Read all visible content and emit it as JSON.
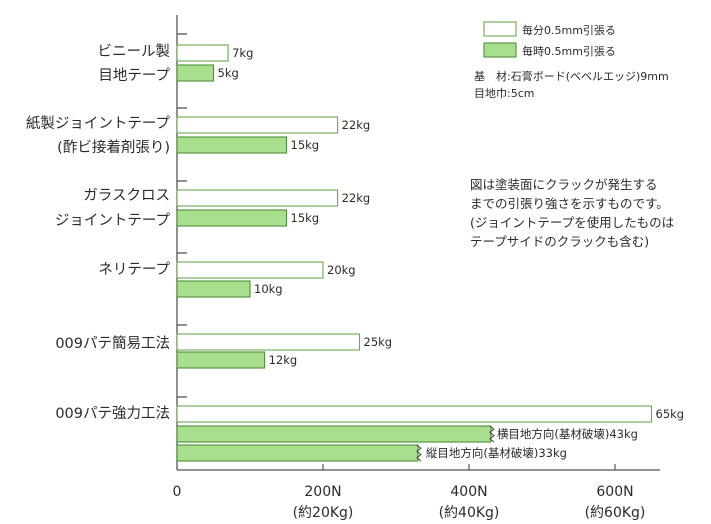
{
  "chart_data": {
    "type": "bar",
    "orientation": "horizontal",
    "categories": [
      [
        "ビニール製",
        "目地テープ"
      ],
      [
        "紙製ジョイントテープ",
        "(酢ビ接着剤張り)"
      ],
      [
        "ガラスクロス",
        "ジョイントテープ"
      ],
      [
        "ネリテープ"
      ],
      [
        "009パテ簡易工法"
      ],
      [
        "009パテ強力工法"
      ]
    ],
    "series": [
      {
        "name": "毎分0.5mm引張る",
        "color": "#ffffff",
        "stroke": "#6aa84f",
        "values": [
          7,
          22,
          22,
          20,
          25,
          65
        ],
        "labels": [
          "7kg",
          "22kg",
          "22kg",
          "20kg",
          "25kg",
          "65kg"
        ]
      },
      {
        "name": "毎時0.5mm引張る",
        "color": "#a8df8c",
        "stroke": "#4f8f3a",
        "values": [
          5,
          15,
          15,
          10,
          12,
          43
        ],
        "labels": [
          "5kg",
          "15kg",
          "15kg",
          "10kg",
          "12kg",
          "横目地方向(基材破壊)43kg"
        ]
      }
    ],
    "extra_bars": [
      {
        "category_index": 5,
        "series": "毎時0.5mm引張る",
        "value": 33,
        "label": "縦目地方向(基材破壊)33kg",
        "broken": true
      }
    ],
    "broken_bars": [
      {
        "category_index": 5,
        "series_index": 1
      }
    ],
    "xlim": [
      0,
      68
    ],
    "x_ticks": [
      {
        "value": 0,
        "label": "0",
        "sub": ""
      },
      {
        "value": 20,
        "label": "200N",
        "sub": "(約20Kg)"
      },
      {
        "value": 40,
        "label": "400N",
        "sub": "(約40Kg)"
      },
      {
        "value": 60,
        "label": "600N",
        "sub": "(約60Kg)"
      }
    ],
    "legend_position": "top-right",
    "legend_notes": [
      "基　材:石膏ボード(ベベルエッジ)9mm",
      "目地巾:5cm"
    ],
    "annotation": [
      "図は塗装面にクラックが発生する",
      "までの引張り強さを示すものです。",
      "(ジョイントテープを使用したものは",
      "テープサイドのクラックも含む)"
    ],
    "colors": {
      "axis": "#555555",
      "outline": "#6aa84f",
      "fill": "#a8df8c"
    }
  }
}
